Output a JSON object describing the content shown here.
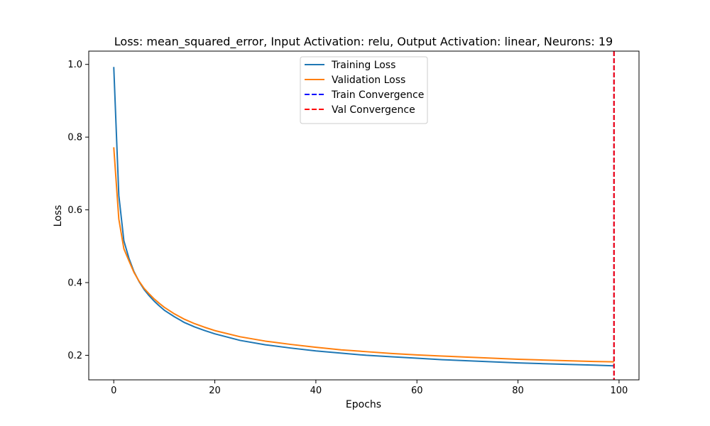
{
  "chart_data": {
    "type": "line",
    "title": "Loss: mean_squared_error, Input Activation: relu, Output Activation: linear, Neurons: 19",
    "xlabel": "Epochs",
    "ylabel": "Loss",
    "xlim": [
      -4.95,
      103.95
    ],
    "ylim": [
      0.1325,
      1.0365
    ],
    "x_ticks": [
      0,
      20,
      40,
      60,
      80,
      100
    ],
    "x_tick_labels": [
      "0",
      "20",
      "40",
      "60",
      "80",
      "100"
    ],
    "y_ticks": [
      0.2,
      0.4,
      0.6,
      0.8,
      1.0
    ],
    "y_tick_labels": [
      "0.2",
      "0.4",
      "0.6",
      "0.8",
      "1.0"
    ],
    "grid": false,
    "legend_position": "upper center",
    "series": [
      {
        "name": "Training Loss",
        "color": "#1f77b4",
        "style": "solid",
        "x": [
          0,
          1,
          2,
          3,
          4,
          5,
          6,
          7,
          8,
          9,
          10,
          12,
          14,
          16,
          18,
          20,
          25,
          30,
          35,
          40,
          45,
          50,
          55,
          60,
          65,
          70,
          75,
          80,
          85,
          90,
          95,
          99
        ],
        "y": [
          0.993,
          0.64,
          0.515,
          0.467,
          0.43,
          0.403,
          0.381,
          0.364,
          0.349,
          0.336,
          0.324,
          0.306,
          0.29,
          0.278,
          0.268,
          0.259,
          0.241,
          0.229,
          0.22,
          0.212,
          0.206,
          0.2,
          0.196,
          0.192,
          0.188,
          0.185,
          0.182,
          0.179,
          0.177,
          0.175,
          0.173,
          0.171
        ]
      },
      {
        "name": "Validation Loss",
        "color": "#ff7f0e",
        "style": "solid",
        "x": [
          0,
          1,
          2,
          3,
          4,
          5,
          6,
          7,
          8,
          9,
          10,
          12,
          14,
          16,
          18,
          20,
          25,
          30,
          35,
          40,
          45,
          50,
          55,
          60,
          65,
          70,
          75,
          80,
          85,
          90,
          95,
          99
        ],
        "y": [
          0.772,
          0.575,
          0.493,
          0.46,
          0.428,
          0.404,
          0.384,
          0.369,
          0.355,
          0.343,
          0.332,
          0.314,
          0.299,
          0.287,
          0.277,
          0.268,
          0.251,
          0.239,
          0.23,
          0.222,
          0.215,
          0.21,
          0.205,
          0.201,
          0.198,
          0.195,
          0.192,
          0.189,
          0.187,
          0.185,
          0.183,
          0.182
        ]
      }
    ],
    "vertical_lines": [
      {
        "name": "Train Convergence",
        "x": 99,
        "color": "#0000ff",
        "style": "dashed"
      },
      {
        "name": "Val Convergence",
        "x": 99,
        "color": "#ff0000",
        "style": "dashed"
      }
    ]
  }
}
